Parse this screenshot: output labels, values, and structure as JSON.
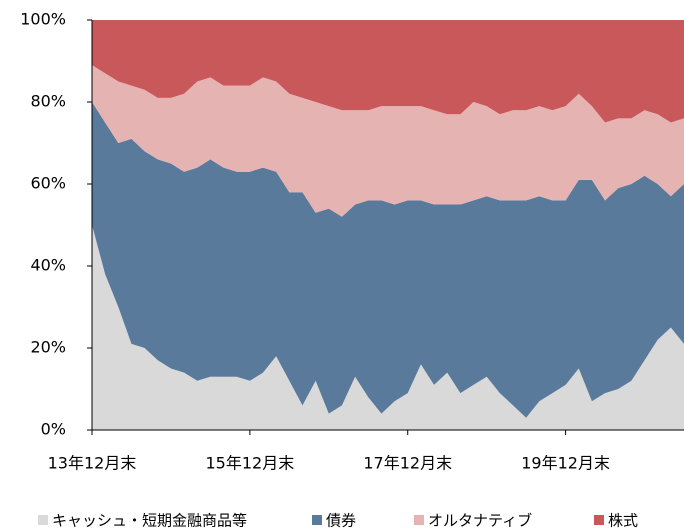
{
  "chart_data": {
    "type": "stacked-area",
    "categories": [
      "13年12月末",
      null,
      null,
      null,
      null,
      null,
      null,
      null,
      null,
      null,
      null,
      null,
      "15年12月末",
      null,
      null,
      null,
      null,
      null,
      null,
      null,
      null,
      null,
      null,
      null,
      "17年12月末",
      null,
      null,
      null,
      null,
      null,
      null,
      null,
      null,
      null,
      null,
      null,
      "19年12月末",
      null,
      null,
      null,
      null,
      null,
      null,
      null,
      null,
      null
    ],
    "series": [
      {
        "name": "キャッシュ・短期金融商品等",
        "color": "#d9d9d9",
        "values": [
          50,
          38,
          30,
          21,
          20,
          17,
          15,
          14,
          12,
          13,
          13,
          13,
          12,
          14,
          18,
          12,
          6,
          12,
          4,
          6,
          13,
          8,
          4,
          7,
          9,
          16,
          11,
          14,
          9,
          11,
          13,
          9,
          6,
          3,
          7,
          9,
          11,
          15,
          7,
          9,
          10,
          12,
          17,
          22,
          25,
          21
        ]
      },
      {
        "name": "債券",
        "color": "#5a7a9b",
        "values": [
          30,
          37,
          40,
          50,
          48,
          49,
          50,
          49,
          52,
          53,
          51,
          50,
          51,
          50,
          45,
          46,
          52,
          41,
          50,
          46,
          42,
          48,
          52,
          48,
          47,
          40,
          44,
          41,
          46,
          45,
          44,
          47,
          50,
          53,
          50,
          47,
          45,
          46,
          54,
          47,
          49,
          48,
          45,
          38,
          32,
          39
        ]
      },
      {
        "name": "オルタナティブ",
        "color": "#e6b3b3",
        "values": [
          9,
          12,
          15,
          13,
          15,
          15,
          16,
          19,
          21,
          20,
          20,
          21,
          21,
          22,
          22,
          24,
          23,
          27,
          25,
          26,
          23,
          22,
          23,
          24,
          23,
          23,
          23,
          22,
          22,
          24,
          22,
          21,
          22,
          22,
          22,
          22,
          23,
          21,
          18,
          19,
          17,
          16,
          16,
          17,
          18,
          16
        ]
      },
      {
        "name": "株式",
        "color": "#c9585a",
        "values": [
          11,
          13,
          15,
          16,
          17,
          19,
          19,
          18,
          15,
          14,
          16,
          16,
          16,
          14,
          15,
          18,
          19,
          20,
          21,
          22,
          22,
          22,
          21,
          21,
          21,
          21,
          22,
          23,
          23,
          20,
          21,
          23,
          22,
          22,
          21,
          22,
          21,
          18,
          21,
          25,
          24,
          24,
          22,
          23,
          25,
          24
        ]
      }
    ],
    "ylim": [
      0,
      100
    ],
    "yticks": [
      {
        "value": 0,
        "label": "0%"
      },
      {
        "value": 20,
        "label": "20%"
      },
      {
        "value": 40,
        "label": "40%"
      },
      {
        "value": 60,
        "label": "60%"
      },
      {
        "value": 80,
        "label": "80%"
      },
      {
        "value": 100,
        "label": "100%"
      }
    ]
  }
}
